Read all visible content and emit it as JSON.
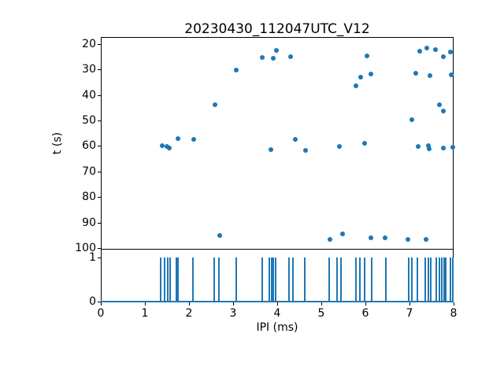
{
  "title": "20230430_112047UTC_V12",
  "chart_data": [
    {
      "type": "scatter",
      "name": "ipi-vs-time-scatter",
      "ylabel": "t (s)",
      "xlim": [
        0,
        8
      ],
      "ylim_top_to_bottom": [
        17.2,
        100.5
      ],
      "y_axis_inverted": true,
      "yticks": [
        20,
        30,
        40,
        50,
        60,
        70,
        80,
        90,
        100
      ],
      "grid": false,
      "marker_color": "#1f77b4",
      "points": [
        {
          "x": 1.39,
          "t": 59.8
        },
        {
          "x": 1.5,
          "t": 60.2
        },
        {
          "x": 1.55,
          "t": 60.8
        },
        {
          "x": 1.75,
          "t": 57.0
        },
        {
          "x": 2.11,
          "t": 57.3
        },
        {
          "x": 2.59,
          "t": 43.8
        },
        {
          "x": 2.7,
          "t": 95.0
        },
        {
          "x": 3.07,
          "t": 30.2
        },
        {
          "x": 3.66,
          "t": 25.3
        },
        {
          "x": 3.86,
          "t": 61.5
        },
        {
          "x": 3.91,
          "t": 25.6
        },
        {
          "x": 3.98,
          "t": 22.4
        },
        {
          "x": 4.31,
          "t": 25.0
        },
        {
          "x": 4.41,
          "t": 57.3
        },
        {
          "x": 4.64,
          "t": 61.7
        },
        {
          "x": 5.2,
          "t": 96.6
        },
        {
          "x": 5.41,
          "t": 60.2
        },
        {
          "x": 5.48,
          "t": 94.6
        },
        {
          "x": 5.79,
          "t": 36.5
        },
        {
          "x": 5.9,
          "t": 33.0
        },
        {
          "x": 5.98,
          "t": 58.9
        },
        {
          "x": 6.03,
          "t": 24.5
        },
        {
          "x": 6.13,
          "t": 31.7
        },
        {
          "x": 6.13,
          "t": 95.9
        },
        {
          "x": 6.45,
          "t": 95.9
        },
        {
          "x": 6.97,
          "t": 96.6
        },
        {
          "x": 7.06,
          "t": 49.7
        },
        {
          "x": 7.14,
          "t": 31.5
        },
        {
          "x": 7.2,
          "t": 60.2
        },
        {
          "x": 7.23,
          "t": 22.9
        },
        {
          "x": 7.38,
          "t": 96.6
        },
        {
          "x": 7.39,
          "t": 21.5
        },
        {
          "x": 7.43,
          "t": 59.8
        },
        {
          "x": 7.44,
          "t": 61.0
        },
        {
          "x": 7.46,
          "t": 32.2
        },
        {
          "x": 7.59,
          "t": 22.2
        },
        {
          "x": 7.67,
          "t": 43.8
        },
        {
          "x": 7.77,
          "t": 25.0
        },
        {
          "x": 7.77,
          "t": 46.3
        },
        {
          "x": 7.77,
          "t": 60.8
        },
        {
          "x": 7.92,
          "t": 23.1
        },
        {
          "x": 7.95,
          "t": 31.9
        },
        {
          "x": 7.98,
          "t": 60.5
        }
      ]
    },
    {
      "type": "line",
      "name": "ipi-spike-train",
      "xlabel": "IPI (ms)",
      "xlim": [
        0,
        8
      ],
      "xticks": [
        0,
        1,
        2,
        3,
        4,
        5,
        6,
        7,
        8
      ],
      "ylim_top_to_bottom": [
        1.18,
        -0.01
      ],
      "yticks": [
        0,
        1
      ],
      "grid": false,
      "line_color": "#1f77b4",
      "baseline_value": 0,
      "spike_value": 1,
      "spike_x": [
        1.36,
        1.45,
        1.52,
        1.57,
        1.71,
        1.75,
        2.09,
        2.58,
        2.67,
        3.07,
        3.66,
        3.82,
        3.87,
        3.91,
        3.97,
        4.26,
        4.35,
        4.62,
        5.18,
        5.36,
        5.45,
        5.78,
        5.88,
        5.99,
        6.15,
        6.46,
        6.98,
        7.06,
        7.17,
        7.36,
        7.43,
        7.49,
        7.61,
        7.68,
        7.74,
        7.79,
        7.82,
        7.93,
        7.98
      ]
    }
  ]
}
